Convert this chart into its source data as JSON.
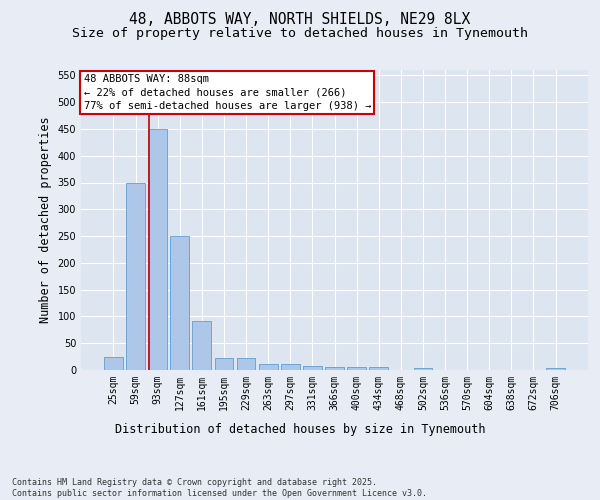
{
  "title_line1": "48, ABBOTS WAY, NORTH SHIELDS, NE29 8LX",
  "title_line2": "Size of property relative to detached houses in Tynemouth",
  "xlabel": "Distribution of detached houses by size in Tynemouth",
  "ylabel": "Number of detached properties",
  "categories": [
    "25sqm",
    "59sqm",
    "93sqm",
    "127sqm",
    "161sqm",
    "195sqm",
    "229sqm",
    "263sqm",
    "297sqm",
    "331sqm",
    "366sqm",
    "400sqm",
    "434sqm",
    "468sqm",
    "502sqm",
    "536sqm",
    "570sqm",
    "604sqm",
    "638sqm",
    "672sqm",
    "706sqm"
  ],
  "values": [
    25,
    350,
    450,
    250,
    92,
    22,
    22,
    12,
    12,
    8,
    6,
    5,
    5,
    0,
    4,
    0,
    0,
    0,
    0,
    0,
    4
  ],
  "bar_color": "#aec6e8",
  "bar_edge_color": "#5a9fd4",
  "annotation_text": "48 ABBOTS WAY: 88sqm\n← 22% of detached houses are smaller (266)\n77% of semi-detached houses are larger (938) →",
  "annotation_box_color": "#cc0000",
  "background_color": "#dde5f0",
  "grid_color": "#ffffff",
  "fig_background": "#e8edf5",
  "ylim": [
    0,
    560
  ],
  "yticks": [
    0,
    50,
    100,
    150,
    200,
    250,
    300,
    350,
    400,
    450,
    500,
    550
  ],
  "footer_text": "Contains HM Land Registry data © Crown copyright and database right 2025.\nContains public sector information licensed under the Open Government Licence v3.0.",
  "title_fontsize": 10.5,
  "subtitle_fontsize": 9.5,
  "axis_label_fontsize": 8.5,
  "tick_fontsize": 7,
  "annotation_fontsize": 7.5,
  "footer_fontsize": 6
}
